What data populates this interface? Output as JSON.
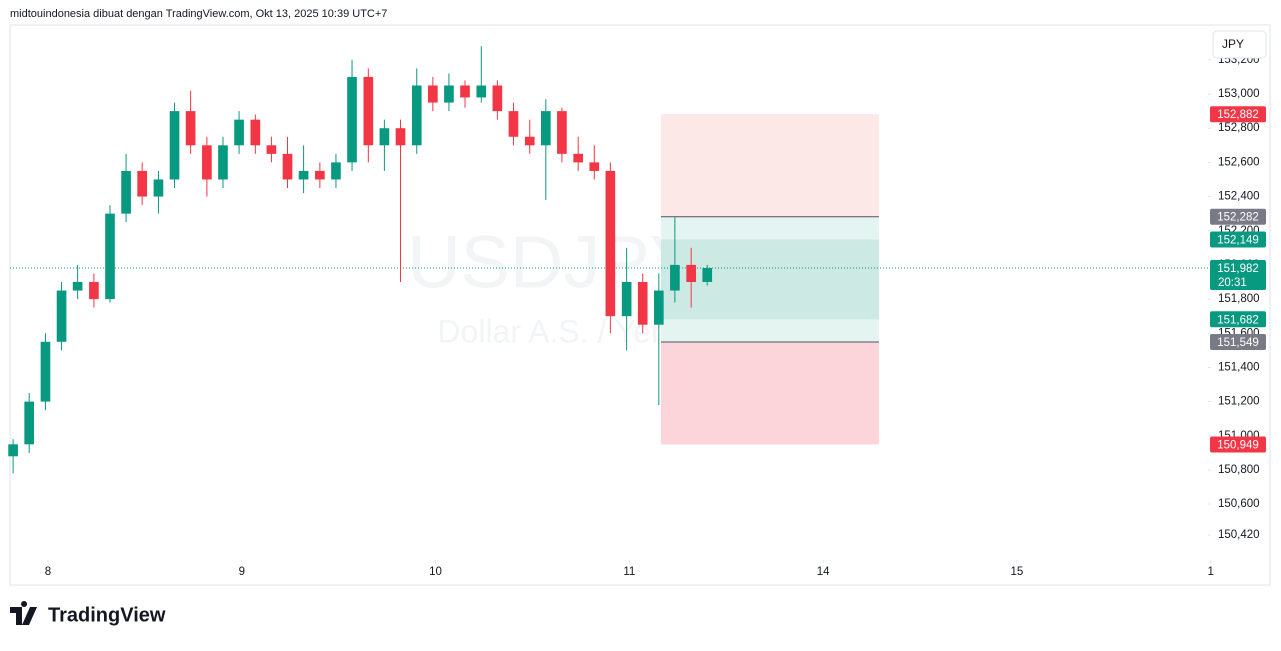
{
  "header": {
    "attribution": "midtouindonesia dibuat dengan TradingView.com, Okt 13, 2025 10:39 UTC+7"
  },
  "footer": {
    "logo": "TradingView"
  },
  "chart_data": {
    "type": "candlestick",
    "title": "USDJPY, 30",
    "subtitle": "Dollar A.S. / Yen Jepang",
    "currency": "JPY",
    "up_color": "#089981",
    "down_color": "#f23645",
    "grid": false,
    "x": [
      0.82,
      0.903,
      0.987,
      1.07,
      1.153,
      1.237,
      1.32,
      1.403,
      1.486,
      1.57,
      1.653,
      1.736,
      1.82,
      1.903,
      1.986,
      2.07,
      2.153,
      2.236,
      2.319,
      2.403,
      2.486,
      2.569,
      2.653,
      2.736,
      2.819,
      2.903,
      2.986,
      3.069,
      3.152,
      3.236,
      3.319,
      3.402,
      3.486,
      3.569,
      3.652,
      3.736,
      3.819,
      3.902,
      3.986,
      4.069,
      4.152,
      4.235,
      4.319,
      4.402
    ],
    "open": [
      150.88,
      150.95,
      151.2,
      151.55,
      151.85,
      151.9,
      151.8,
      152.3,
      152.55,
      152.4,
      152.5,
      152.9,
      152.7,
      152.5,
      152.7,
      152.85,
      152.7,
      152.65,
      152.5,
      152.55,
      152.5,
      152.6,
      153.1,
      152.7,
      152.8,
      152.7,
      153.05,
      152.95,
      153.05,
      152.98,
      153.05,
      152.9,
      152.75,
      152.7,
      152.9,
      152.65,
      152.6,
      152.55,
      151.7,
      151.9,
      151.65,
      151.85,
      152.0,
      151.9
    ],
    "high": [
      150.98,
      151.25,
      151.6,
      151.9,
      152.0,
      151.95,
      152.35,
      152.65,
      152.6,
      152.55,
      152.95,
      153.02,
      152.75,
      152.75,
      152.9,
      152.88,
      152.75,
      152.75,
      152.7,
      152.6,
      152.65,
      153.2,
      153.15,
      152.85,
      152.85,
      153.15,
      153.1,
      153.12,
      153.08,
      153.28,
      153.08,
      152.95,
      152.85,
      152.97,
      152.92,
      152.75,
      152.7,
      152.6,
      152.1,
      151.95,
      151.95,
      152.28,
      152.1,
      152.0
    ],
    "low": [
      150.78,
      150.9,
      151.15,
      151.5,
      151.8,
      151.75,
      151.78,
      152.25,
      152.35,
      152.3,
      152.45,
      152.65,
      152.4,
      152.45,
      152.65,
      152.65,
      152.6,
      152.45,
      152.42,
      152.45,
      152.45,
      152.55,
      152.6,
      152.55,
      151.9,
      152.65,
      152.9,
      152.9,
      152.92,
      152.95,
      152.85,
      152.7,
      152.65,
      152.38,
      152.6,
      152.55,
      152.5,
      151.6,
      151.5,
      151.6,
      151.18,
      151.78,
      151.75,
      151.88
    ],
    "close": [
      150.95,
      151.2,
      151.55,
      151.85,
      151.9,
      151.8,
      152.3,
      152.55,
      152.4,
      152.5,
      152.9,
      152.7,
      152.5,
      152.7,
      152.85,
      152.7,
      152.65,
      152.5,
      152.55,
      152.5,
      152.6,
      153.1,
      152.7,
      152.8,
      152.7,
      153.05,
      152.95,
      153.05,
      152.98,
      153.05,
      152.9,
      152.75,
      152.7,
      152.9,
      152.65,
      152.6,
      152.55,
      151.7,
      151.9,
      151.65,
      151.85,
      152.0,
      151.9,
      151.982
    ],
    "xlim": [
      0.804,
      6.986
    ],
    "ylim": [
      150.273,
      153.404
    ],
    "xticks": [
      {
        "value": 1,
        "label": "8"
      },
      {
        "value": 2,
        "label": "9"
      },
      {
        "value": 3,
        "label": "10"
      },
      {
        "value": 4,
        "label": "11"
      },
      {
        "value": 5,
        "label": "14"
      },
      {
        "value": 6,
        "label": "15"
      },
      {
        "value": 7,
        "label": "1"
      }
    ],
    "yticks": [
      {
        "value": 153.2,
        "label": "153,200"
      },
      {
        "value": 153,
        "label": "153,000"
      },
      {
        "value": 152.8,
        "label": "152,800"
      },
      {
        "value": 152.6,
        "label": "152,600"
      },
      {
        "value": 152.4,
        "label": "152,400"
      },
      {
        "value": 152.2,
        "label": "152,200"
      },
      {
        "value": 152,
        "label": "152,000"
      },
      {
        "value": 151.8,
        "label": "151,800"
      },
      {
        "value": 151.6,
        "label": "151,600"
      },
      {
        "value": 151.4,
        "label": "151,400"
      },
      {
        "value": 151.2,
        "label": "151,200"
      },
      {
        "value": 151,
        "label": "151,000"
      },
      {
        "value": 150.8,
        "label": "150,800"
      },
      {
        "value": 150.6,
        "label": "150,600"
      },
      {
        "value": 150.42,
        "label": "150,420"
      }
    ],
    "position": {
      "x": [
        4.163,
        5.288
      ],
      "zones": [
        {
          "from": 152.882,
          "to": 152.282,
          "color": "#fde8e8"
        },
        {
          "from": 152.282,
          "to": 151.549,
          "color": "#e3f4f1"
        },
        {
          "from": 152.149,
          "to": 151.682,
          "color": "#cde9e4"
        },
        {
          "from": 151.549,
          "to": 150.949,
          "color": "#fbd5d9"
        }
      ],
      "lines": [
        152.282,
        151.549
      ]
    },
    "price_labels": [
      {
        "value": 152.882,
        "label": "152,882",
        "color": "#f23645"
      },
      {
        "value": 152.282,
        "label": "152,282",
        "color": "#787b86"
      },
      {
        "value": 152.149,
        "label": "152,149",
        "color": "#089981"
      },
      {
        "value": 151.682,
        "label": "151,682",
        "color": "#089981"
      },
      {
        "value": 151.549,
        "label": "151,549",
        "color": "#787b86"
      },
      {
        "value": 150.949,
        "label": "150,949",
        "color": "#f23645"
      }
    ],
    "last_price": {
      "value": 151.982,
      "label": "151,982",
      "countdown": "20:31",
      "color": "#089981"
    }
  }
}
